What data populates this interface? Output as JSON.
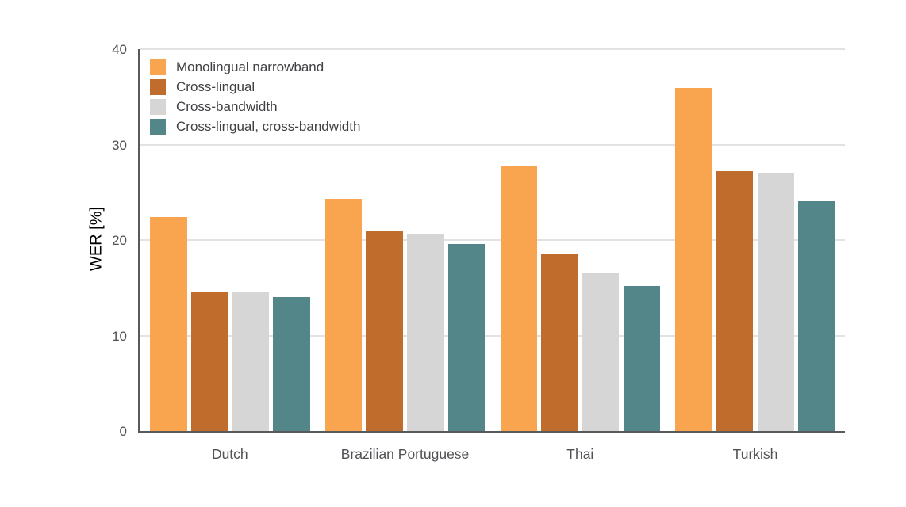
{
  "chart_data": {
    "type": "bar",
    "title": "",
    "xlabel": "",
    "ylabel": "WER [%]",
    "ylim": [
      0,
      40
    ],
    "yticks": [
      0,
      10,
      20,
      30,
      40
    ],
    "grid": true,
    "legend_position": "upper-left-inside",
    "categories": [
      "Dutch",
      "Brazilian Portuguese",
      "Thai",
      "Turkish"
    ],
    "series": [
      {
        "name": "Monolingual narrowband",
        "color": "#F9A44F",
        "values": [
          22.4,
          24.3,
          27.7,
          35.9
        ]
      },
      {
        "name": "Cross-lingual",
        "color": "#BF6C2C",
        "values": [
          14.6,
          20.9,
          18.5,
          27.2
        ]
      },
      {
        "name": "Cross-bandwidth",
        "color": "#D6D6D6",
        "values": [
          14.6,
          20.6,
          16.5,
          27.0
        ]
      },
      {
        "name": "Cross-lingual, cross-bandwidth",
        "color": "#538688",
        "values": [
          14.0,
          19.6,
          15.2,
          24.1
        ]
      }
    ],
    "axis_color": "#58595B",
    "grid_color": "#E2E2E2",
    "text_color": "#515156"
  }
}
